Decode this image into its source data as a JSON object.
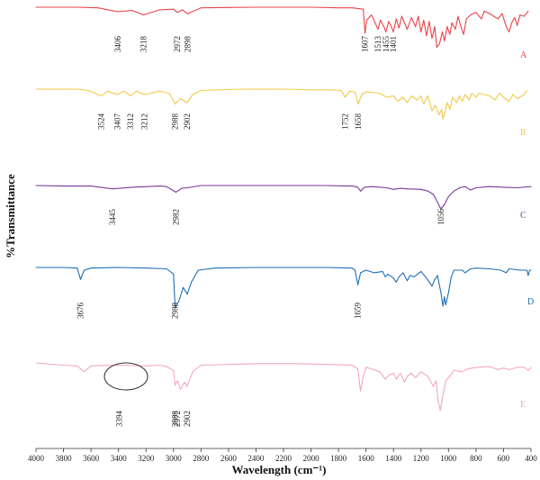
{
  "chart_data": {
    "type": "line",
    "title": "",
    "xlabel": "Wavelength (cm⁻¹)",
    "ylabel": "%Transmittance",
    "x_reversed": true,
    "xlim": [
      4000,
      400
    ],
    "x_ticks": [
      4000,
      3800,
      3600,
      3400,
      3200,
      3000,
      2800,
      2600,
      2400,
      2200,
      2000,
      1800,
      1600,
      1400,
      1200,
      1000,
      800,
      600,
      400
    ],
    "x_tick_labels": [
      "4000",
      "3800",
      "3600",
      "3400",
      "3200",
      "3000",
      "2800",
      "2600",
      "2400",
      "2200",
      "2000",
      "1800",
      "1600",
      "1400",
      "1200",
      "1000",
      "800",
      "600",
      "400"
    ],
    "grid": false,
    "y_scale": "relative %T, traces vertically offset",
    "series": [
      {
        "label": "A",
        "color": "#e8434a",
        "points": [
          [
            4000,
            100
          ],
          [
            3700,
            100
          ],
          [
            3550,
            99
          ],
          [
            3406,
            93
          ],
          [
            3300,
            95
          ],
          [
            3218,
            88
          ],
          [
            3100,
            96
          ],
          [
            3000,
            97
          ],
          [
            2972,
            92
          ],
          [
            2935,
            96
          ],
          [
            2898,
            90
          ],
          [
            2800,
            99
          ],
          [
            2400,
            100
          ],
          [
            2000,
            100
          ],
          [
            1800,
            99
          ],
          [
            1700,
            99
          ],
          [
            1620,
            97
          ],
          [
            1607,
            60
          ],
          [
            1595,
            80
          ],
          [
            1560,
            88
          ],
          [
            1530,
            74
          ],
          [
            1513,
            66
          ],
          [
            1495,
            80
          ],
          [
            1470,
            70
          ],
          [
            1455,
            62
          ],
          [
            1435,
            78
          ],
          [
            1420,
            72
          ],
          [
            1401,
            62
          ],
          [
            1380,
            82
          ],
          [
            1360,
            68
          ],
          [
            1340,
            86
          ],
          [
            1300,
            66
          ],
          [
            1270,
            84
          ],
          [
            1240,
            70
          ],
          [
            1220,
            86
          ],
          [
            1200,
            62
          ],
          [
            1180,
            80
          ],
          [
            1160,
            56
          ],
          [
            1140,
            78
          ],
          [
            1120,
            52
          ],
          [
            1100,
            70
          ],
          [
            1085,
            38
          ],
          [
            1065,
            44
          ],
          [
            1045,
            62
          ],
          [
            1030,
            48
          ],
          [
            1010,
            70
          ],
          [
            990,
            58
          ],
          [
            975,
            76
          ],
          [
            950,
            66
          ],
          [
            930,
            86
          ],
          [
            910,
            70
          ],
          [
            890,
            58
          ],
          [
            870,
            82
          ],
          [
            840,
            88
          ],
          [
            800,
            92
          ],
          [
            760,
            82
          ],
          [
            740,
            94
          ],
          [
            700,
            90
          ],
          [
            640,
            82
          ],
          [
            610,
            90
          ],
          [
            580,
            70
          ],
          [
            560,
            62
          ],
          [
            540,
            76
          ],
          [
            520,
            84
          ],
          [
            500,
            72
          ],
          [
            480,
            88
          ],
          [
            450,
            86
          ],
          [
            420,
            94
          ]
        ],
        "peaks": [
          "3406",
          "3218",
          "2972",
          "2898",
          "1607",
          "1513",
          "1455",
          "1401"
        ]
      },
      {
        "label": "B",
        "color": "#f2c94c",
        "points": [
          [
            4000,
            100
          ],
          [
            3700,
            100
          ],
          [
            3620,
            98
          ],
          [
            3524,
            90
          ],
          [
            3480,
            97
          ],
          [
            3407,
            92
          ],
          [
            3360,
            97
          ],
          [
            3312,
            90
          ],
          [
            3270,
            97
          ],
          [
            3212,
            92
          ],
          [
            3100,
            97
          ],
          [
            3030,
            94
          ],
          [
            2988,
            78
          ],
          [
            2950,
            86
          ],
          [
            2902,
            80
          ],
          [
            2860,
            92
          ],
          [
            2800,
            98
          ],
          [
            2500,
            100
          ],
          [
            2200,
            100
          ],
          [
            2000,
            99
          ],
          [
            1850,
            99
          ],
          [
            1780,
            98
          ],
          [
            1752,
            88
          ],
          [
            1720,
            97
          ],
          [
            1680,
            96
          ],
          [
            1658,
            78
          ],
          [
            1630,
            92
          ],
          [
            1600,
            96
          ],
          [
            1500,
            94
          ],
          [
            1450,
            88
          ],
          [
            1400,
            90
          ],
          [
            1370,
            82
          ],
          [
            1330,
            88
          ],
          [
            1300,
            80
          ],
          [
            1270,
            90
          ],
          [
            1230,
            84
          ],
          [
            1200,
            90
          ],
          [
            1180,
            78
          ],
          [
            1150,
            90
          ],
          [
            1120,
            68
          ],
          [
            1095,
            76
          ],
          [
            1070,
            62
          ],
          [
            1050,
            70
          ],
          [
            1040,
            56
          ],
          [
            1025,
            66
          ],
          [
            1010,
            80
          ],
          [
            990,
            70
          ],
          [
            970,
            88
          ],
          [
            940,
            80
          ],
          [
            920,
            90
          ],
          [
            900,
            82
          ],
          [
            880,
            92
          ],
          [
            850,
            84
          ],
          [
            830,
            94
          ],
          [
            800,
            88
          ],
          [
            780,
            94
          ],
          [
            700,
            90
          ],
          [
            660,
            84
          ],
          [
            630,
            94
          ],
          [
            600,
            88
          ],
          [
            560,
            82
          ],
          [
            530,
            92
          ],
          [
            500,
            86
          ],
          [
            450,
            92
          ],
          [
            430,
            98
          ]
        ],
        "peaks": [
          "3524",
          "3407",
          "3312",
          "3212",
          "2988",
          "2902",
          "1752",
          "1658"
        ]
      },
      {
        "label": "C",
        "color": "#7a3a99",
        "points": [
          [
            4000,
            100
          ],
          [
            3800,
            99
          ],
          [
            3600,
            99
          ],
          [
            3445,
            94
          ],
          [
            3300,
            97
          ],
          [
            3100,
            99
          ],
          [
            3050,
            98
          ],
          [
            2982,
            88
          ],
          [
            2940,
            95
          ],
          [
            2900,
            96
          ],
          [
            2800,
            100
          ],
          [
            2500,
            100
          ],
          [
            2200,
            100
          ],
          [
            1900,
            100
          ],
          [
            1700,
            99
          ],
          [
            1660,
            97
          ],
          [
            1640,
            90
          ],
          [
            1610,
            97
          ],
          [
            1560,
            98
          ],
          [
            1450,
            96
          ],
          [
            1400,
            93
          ],
          [
            1350,
            95
          ],
          [
            1300,
            94
          ],
          [
            1200,
            93
          ],
          [
            1150,
            90
          ],
          [
            1110,
            84
          ],
          [
            1080,
            70
          ],
          [
            1056,
            58
          ],
          [
            1030,
            66
          ],
          [
            1000,
            80
          ],
          [
            960,
            90
          ],
          [
            920,
            96
          ],
          [
            880,
            98
          ],
          [
            840,
            92
          ],
          [
            800,
            96
          ],
          [
            700,
            98
          ],
          [
            600,
            97
          ],
          [
            500,
            96
          ],
          [
            400,
            98
          ]
        ],
        "peaks": [
          "3445",
          "2982",
          "1056"
        ]
      },
      {
        "label": "D",
        "color": "#1f6fb5",
        "points": [
          [
            4000,
            100
          ],
          [
            3800,
            100
          ],
          [
            3700,
            99
          ],
          [
            3676,
            82
          ],
          [
            3650,
            96
          ],
          [
            3600,
            99
          ],
          [
            3400,
            100
          ],
          [
            3200,
            99
          ],
          [
            3050,
            98
          ],
          [
            3000,
            90
          ],
          [
            2988,
            40
          ],
          [
            2960,
            50
          ],
          [
            2930,
            70
          ],
          [
            2900,
            60
          ],
          [
            2870,
            78
          ],
          [
            2820,
            96
          ],
          [
            2700,
            99
          ],
          [
            2400,
            100
          ],
          [
            2100,
            100
          ],
          [
            1900,
            100
          ],
          [
            1700,
            99
          ],
          [
            1680,
            96
          ],
          [
            1659,
            74
          ],
          [
            1640,
            92
          ],
          [
            1600,
            96
          ],
          [
            1540,
            92
          ],
          [
            1480,
            94
          ],
          [
            1460,
            86
          ],
          [
            1440,
            90
          ],
          [
            1400,
            84
          ],
          [
            1380,
            78
          ],
          [
            1360,
            86
          ],
          [
            1330,
            92
          ],
          [
            1300,
            80
          ],
          [
            1280,
            88
          ],
          [
            1250,
            86
          ],
          [
            1200,
            94
          ],
          [
            1160,
            84
          ],
          [
            1120,
            72
          ],
          [
            1100,
            82
          ],
          [
            1080,
            88
          ],
          [
            1055,
            62
          ],
          [
            1040,
            42
          ],
          [
            1030,
            56
          ],
          [
            1020,
            44
          ],
          [
            1000,
            62
          ],
          [
            980,
            86
          ],
          [
            960,
            96
          ],
          [
            900,
            96
          ],
          [
            880,
            92
          ],
          [
            840,
            98
          ],
          [
            800,
            99
          ],
          [
            700,
            98
          ],
          [
            620,
            96
          ],
          [
            580,
            92
          ],
          [
            560,
            98
          ],
          [
            480,
            96
          ],
          [
            430,
            96
          ],
          [
            420,
            88
          ],
          [
            410,
            96
          ],
          [
            400,
            96
          ]
        ],
        "peaks": [
          "3676",
          "2988",
          "1659"
        ]
      },
      {
        "label": "E",
        "color": "#f2a7c6",
        "points": [
          [
            4000,
            100
          ],
          [
            3800,
            97
          ],
          [
            3700,
            96
          ],
          [
            3650,
            88
          ],
          [
            3600,
            96
          ],
          [
            3400,
            97
          ],
          [
            3200,
            96
          ],
          [
            3100,
            97
          ],
          [
            3050,
            95
          ],
          [
            3000,
            90
          ],
          [
            2988,
            70
          ],
          [
            2970,
            76
          ],
          [
            2950,
            64
          ],
          [
            2920,
            74
          ],
          [
            2902,
            68
          ],
          [
            2860,
            88
          ],
          [
            2800,
            97
          ],
          [
            2400,
            99
          ],
          [
            2100,
            99
          ],
          [
            1900,
            98
          ],
          [
            1700,
            97
          ],
          [
            1660,
            92
          ],
          [
            1640,
            62
          ],
          [
            1620,
            82
          ],
          [
            1600,
            94
          ],
          [
            1560,
            92
          ],
          [
            1500,
            88
          ],
          [
            1460,
            78
          ],
          [
            1430,
            84
          ],
          [
            1400,
            86
          ],
          [
            1380,
            78
          ],
          [
            1350,
            86
          ],
          [
            1320,
            74
          ],
          [
            1300,
            82
          ],
          [
            1270,
            86
          ],
          [
            1240,
            80
          ],
          [
            1200,
            88
          ],
          [
            1150,
            82
          ],
          [
            1110,
            68
          ],
          [
            1090,
            76
          ],
          [
            1075,
            48
          ],
          [
            1060,
            36
          ],
          [
            1045,
            52
          ],
          [
            1020,
            76
          ],
          [
            990,
            82
          ],
          [
            960,
            90
          ],
          [
            900,
            88
          ],
          [
            860,
            92
          ],
          [
            800,
            94
          ],
          [
            700,
            95
          ],
          [
            640,
            91
          ],
          [
            600,
            93
          ],
          [
            560,
            91
          ],
          [
            500,
            94
          ],
          [
            450,
            94
          ],
          [
            420,
            90
          ],
          [
            400,
            94
          ]
        ],
        "peaks": [
          "3394",
          "2988",
          "2972",
          "2902"
        ]
      }
    ]
  }
}
